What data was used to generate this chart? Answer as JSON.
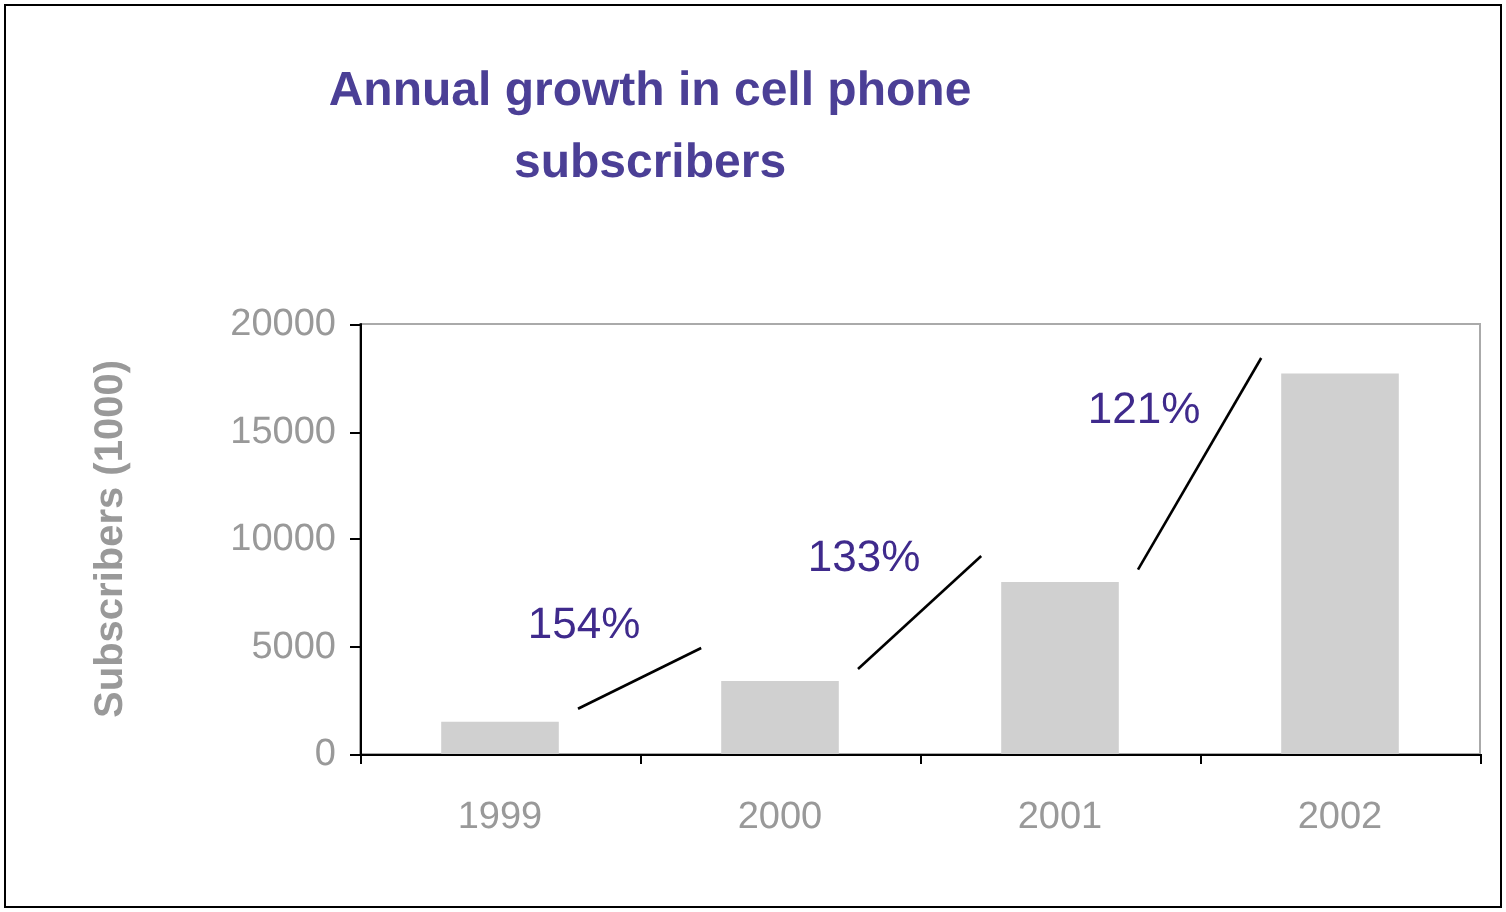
{
  "chart_data": {
    "type": "bar",
    "title": "Annual growth in cell phone\nsubscribers",
    "ylabel": "Subscribers (1000)",
    "categories": [
      "1999",
      "2000",
      "2001",
      "2002"
    ],
    "values": [
      1500,
      3400,
      8000,
      17700
    ],
    "color": "#d0d0d0",
    "ylim": [
      0,
      20000
    ],
    "yticks": [
      0,
      5000,
      10000,
      15000,
      20000
    ],
    "grid": false,
    "annotations": [
      "154%",
      "133%",
      "121%"
    ]
  }
}
